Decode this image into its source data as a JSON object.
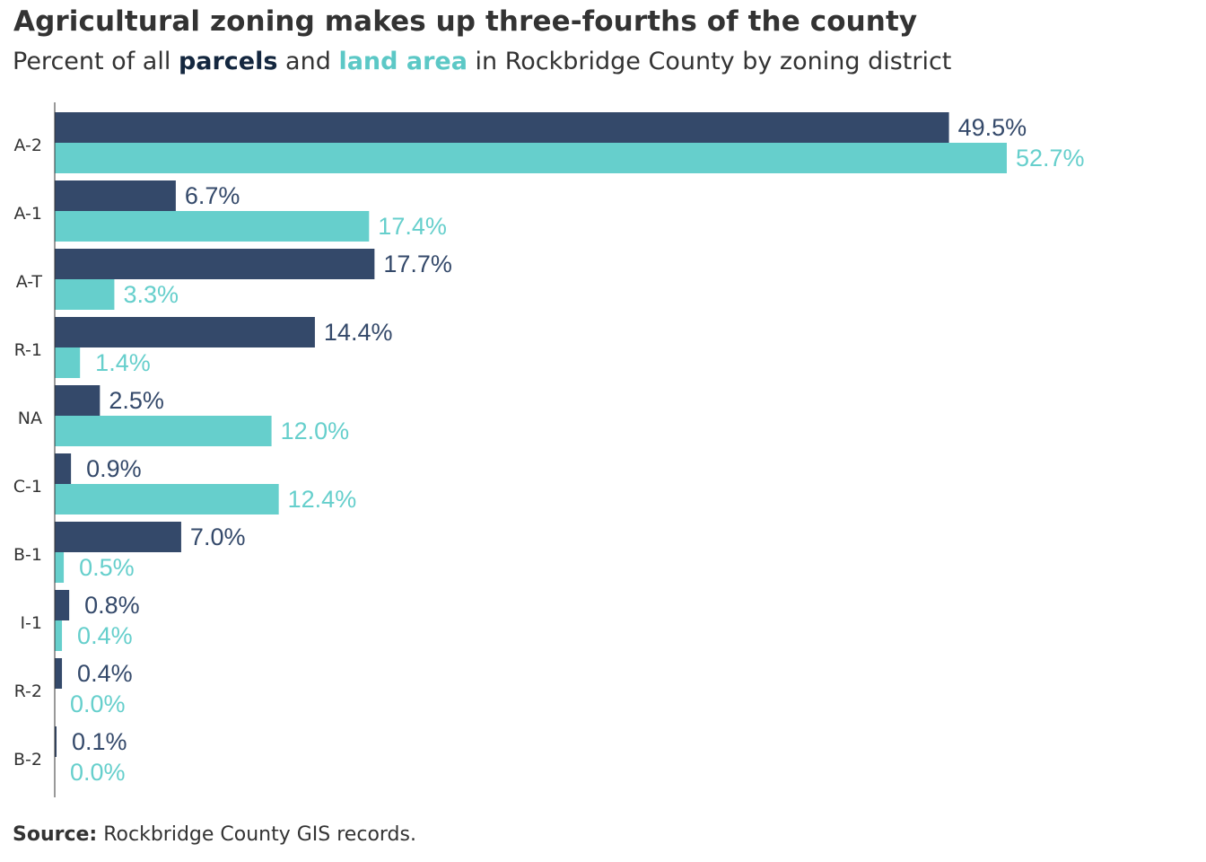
{
  "title": "Agricultural zoning makes up three-fourths of the county",
  "subtitle": {
    "prefix": "Percent of all",
    "parcels": "parcels",
    "and": "and",
    "land_area": "land area",
    "suffix": "in Rockbridge County by zoning district"
  },
  "source": {
    "label": "Source:",
    "text": "Rockbridge County GIS records."
  },
  "colors": {
    "parcels": "#34496a",
    "land_area": "#66cfcc",
    "parcels_label": "#34496a",
    "land_area_label": "#66cfcc",
    "axis": "#333333",
    "text": "#333333"
  },
  "chart_data": {
    "type": "bar",
    "orientation": "horizontal",
    "title": "Agricultural zoning makes up three-fourths of the county",
    "categories": [
      "A-2",
      "A-1",
      "A-T",
      "R-1",
      "NA",
      "C-1",
      "B-1",
      "I-1",
      "R-2",
      "B-2"
    ],
    "series": [
      {
        "name": "parcels",
        "values": [
          49.5,
          6.7,
          17.7,
          14.4,
          2.5,
          0.9,
          7.0,
          0.8,
          0.4,
          0.1
        ],
        "labels": [
          "49.5%",
          "6.7%",
          "17.7%",
          "14.4%",
          "2.5%",
          "0.9%",
          "7.0%",
          "0.8%",
          "0.4%",
          "0.1%"
        ]
      },
      {
        "name": "land area",
        "values": [
          52.7,
          17.4,
          3.3,
          1.4,
          12.0,
          12.4,
          0.5,
          0.4,
          0.0,
          0.0
        ],
        "labels": [
          "52.7%",
          "17.4%",
          "3.3%",
          "1.4%",
          "12.0%",
          "12.4%",
          "0.5%",
          "0.4%",
          "0.0%",
          "0.0%"
        ]
      }
    ],
    "xlim": [
      0,
      52.7
    ],
    "grid": false,
    "legend": "in subtitle"
  }
}
